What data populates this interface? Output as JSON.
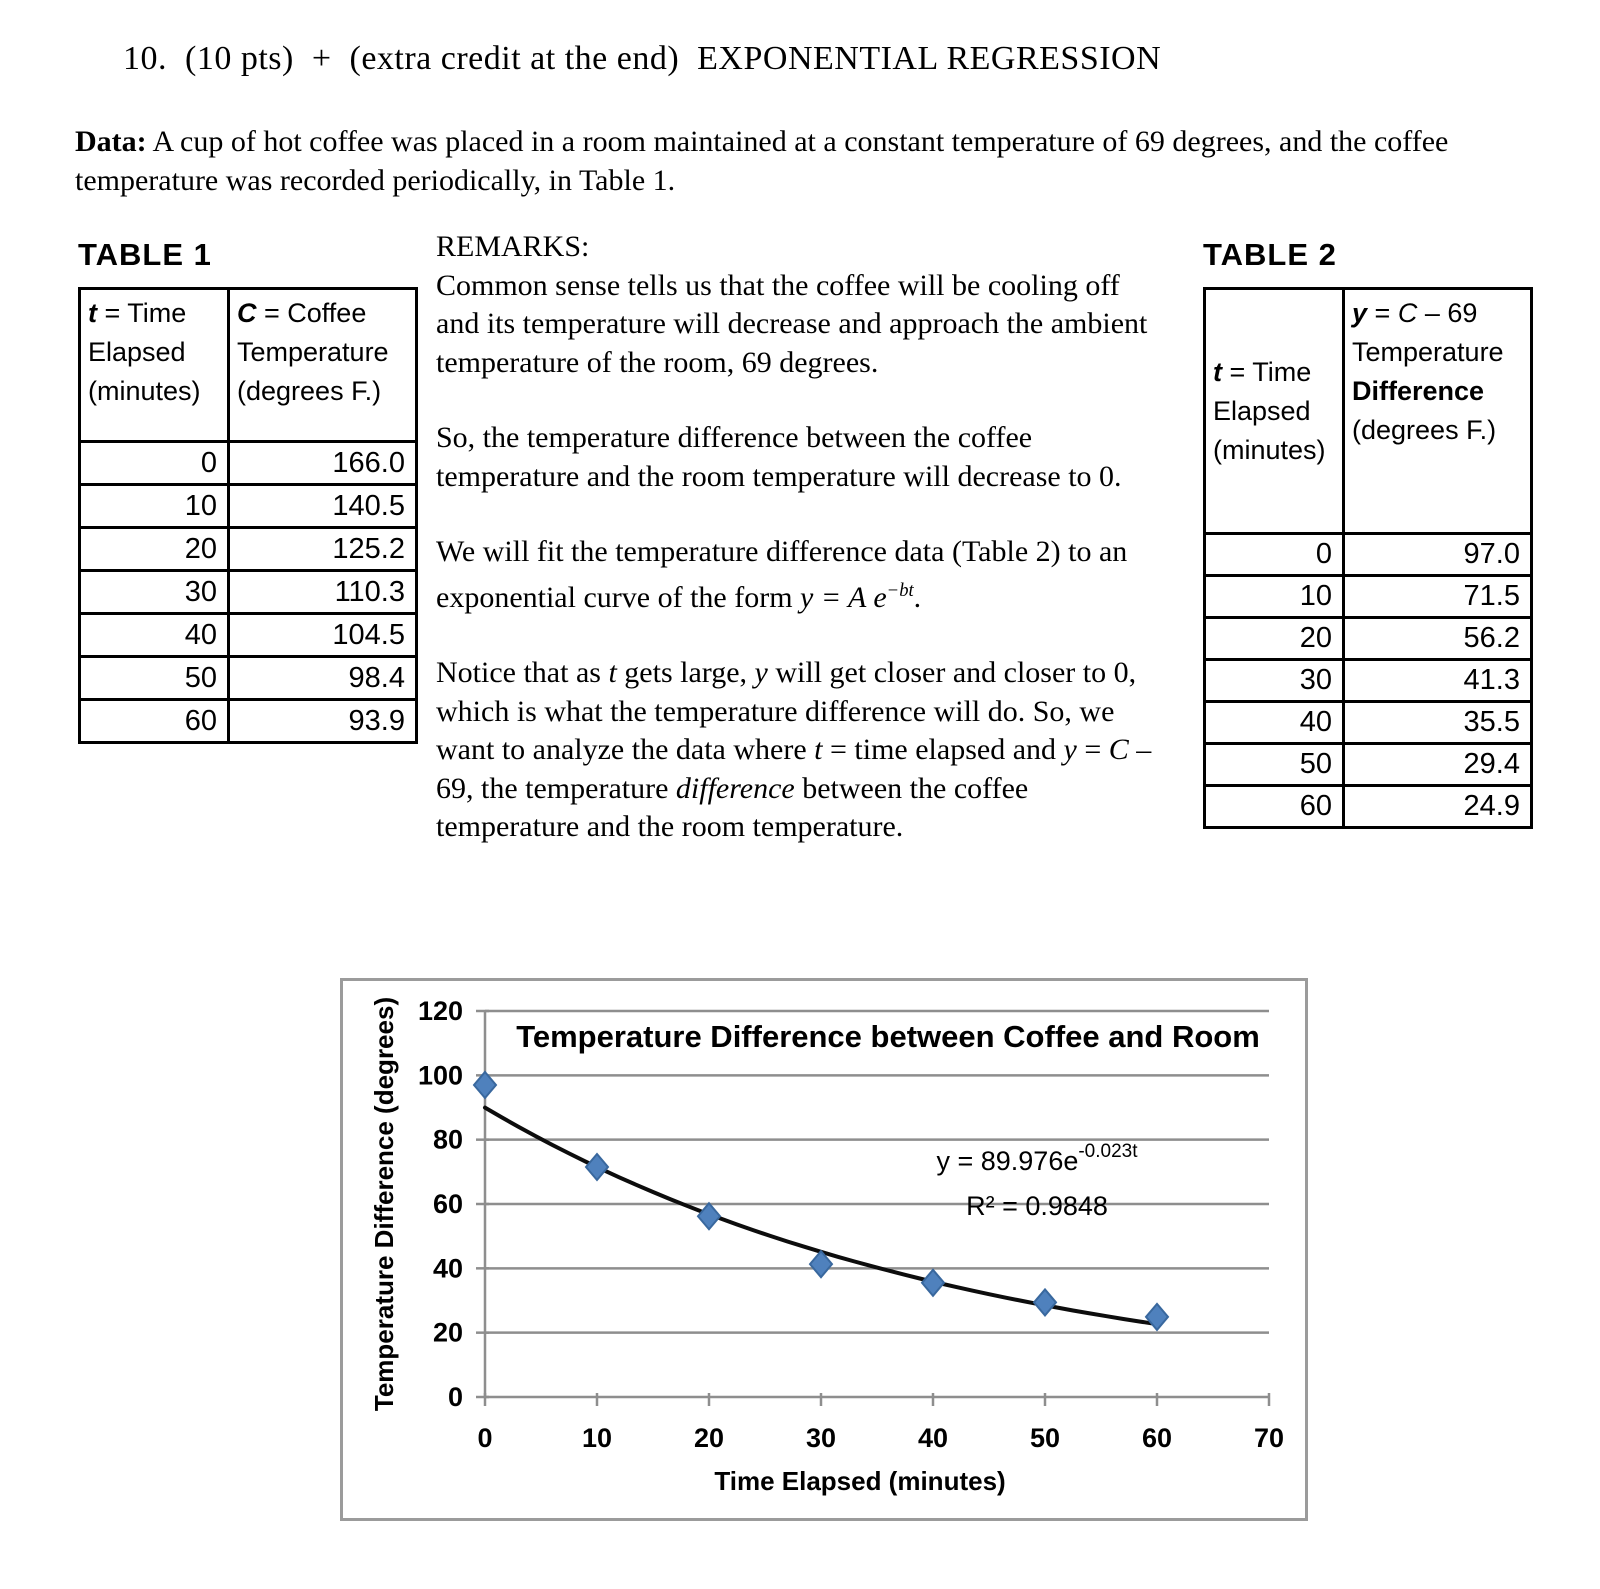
{
  "header": {
    "title": "10.  (10 pts)  +  (extra credit at the end)  EXPONENTIAL REGRESSION",
    "data_label": "Data:",
    "data_text": " A cup of hot coffee was placed in a room maintained at a constant temperature of 69 degrees, and the coffee temperature was recorded periodically, in Table 1."
  },
  "table1": {
    "heading": "TABLE 1",
    "col1": {
      "var": "t",
      "rest": " = Time Elapsed (minutes)"
    },
    "col2": {
      "var": "C",
      "rest": " = Coffee Temperature (degrees F.)"
    },
    "rows": [
      [
        "0",
        "166.0"
      ],
      [
        "10",
        "140.5"
      ],
      [
        "20",
        "125.2"
      ],
      [
        "30",
        "110.3"
      ],
      [
        "40",
        "104.5"
      ],
      [
        "50",
        "98.4"
      ],
      [
        "60",
        "93.9"
      ]
    ]
  },
  "remarks": {
    "heading": "REMARKS:",
    "paragraphs": [
      {
        "segments": [
          {
            "t": "Common sense tells us that the coffee will be cooling off and its temperature will decrease and approach the ambient temperature of the room, 69 degrees."
          }
        ]
      },
      {
        "segments": [
          {
            "t": "So, the temperature difference between the coffee temperature and the room temperature will decrease to 0."
          }
        ]
      },
      {
        "segments": [
          {
            "t": "We will fit the temperature difference data (Table 2) to an exponential curve of the form  "
          },
          {
            "t": "y = A e",
            "style": "i"
          },
          {
            "t": "−bt",
            "style": "i sup"
          },
          {
            "t": "."
          }
        ]
      },
      {
        "segments": [
          {
            "t": "Notice that as "
          },
          {
            "t": "t",
            "style": "i"
          },
          {
            "t": " gets large, "
          },
          {
            "t": "y",
            "style": "i"
          },
          {
            "t": " will get closer and closer to 0, which is what the temperature difference will do. So, we want to analyze the data where "
          },
          {
            "t": "t",
            "style": "i"
          },
          {
            "t": " = time elapsed and "
          },
          {
            "t": "y",
            "style": "i"
          },
          {
            "t": " = "
          },
          {
            "t": "C",
            "style": "i"
          },
          {
            "t": " – 69, the temperature "
          },
          {
            "t": "difference",
            "style": "i"
          },
          {
            "t": " between the coffee temperature and the room temperature."
          }
        ]
      }
    ]
  },
  "table2": {
    "heading": "TABLE 2",
    "col1": {
      "var": "t",
      "rest": "  = Time Elapsed (minutes)"
    },
    "col2": {
      "var": "y",
      "eq": " = ",
      "cvar": "C",
      "rest": " – 69 Temperature ",
      "bold_word": "Difference",
      "units": " (degrees F.)"
    },
    "rows": [
      [
        "0",
        "97.0"
      ],
      [
        "10",
        "71.5"
      ],
      [
        "20",
        "56.2"
      ],
      [
        "30",
        "41.3"
      ],
      [
        "40",
        "35.5"
      ],
      [
        "50",
        "29.4"
      ],
      [
        "60",
        "24.9"
      ]
    ]
  },
  "chart_data": {
    "type": "scatter",
    "title": "Temperature Difference between Coffee and Room",
    "xlabel": "Time Elapsed (minutes)",
    "ylabel": "Temperature Difference (degrees)",
    "x": [
      0,
      10,
      20,
      30,
      40,
      50,
      60
    ],
    "y": [
      97.0,
      71.5,
      56.2,
      41.3,
      35.5,
      29.4,
      24.9
    ],
    "xlim": [
      0,
      70
    ],
    "ylim": [
      0,
      120
    ],
    "xticks": [
      0,
      10,
      20,
      30,
      40,
      50,
      60,
      70
    ],
    "yticks": [
      0,
      20,
      40,
      60,
      80,
      100,
      120
    ],
    "grid": "horizontal",
    "legend": "none",
    "trendline": {
      "A": 89.976,
      "b": 0.023,
      "range": [
        0,
        60
      ],
      "equation_base": "y = 89.976e",
      "equation_exp": "-0.023t",
      "r2_label": "R² = 0.9848"
    },
    "colors": {
      "marker": "#4f81bd",
      "marker_edge": "#39689e",
      "trendline": "#0d0d0d",
      "grid": "#8e8e8e",
      "border": "#9b9b9b"
    }
  }
}
